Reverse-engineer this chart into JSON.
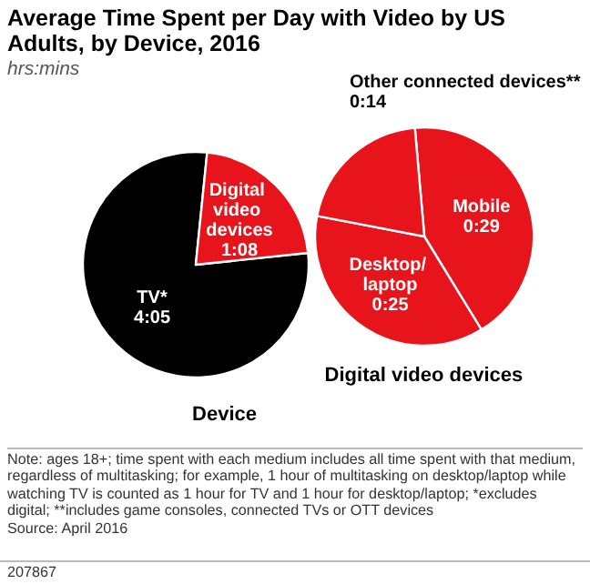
{
  "chart_data": [
    {
      "type": "pie",
      "title": "Average Time Spent per Day with Video by US Adults, by Device, 2016",
      "subtitle": "hrs:mins",
      "xlabel": "Device",
      "categories": [
        "TV*",
        "Digital video devices"
      ],
      "values": [
        245,
        68
      ],
      "value_labels": [
        "4:05",
        "1:08"
      ],
      "colors": [
        "#000000",
        "#e8141c"
      ],
      "annotations": [
        "Note: ages 18+; time spent with each medium includes all time spent with that medium, regardless of multitasking; for example, 1 hour of multitasking on desktop/laptop while watching TV is counted as 1 hour for TV and 1 hour for desktop/laptop; *excludes digital; **includes game consoles, connected TVs or OTT devices",
        "Source: April 2016",
        "207867"
      ]
    },
    {
      "type": "pie",
      "xlabel": "Digital video devices",
      "categories": [
        "Mobile",
        "Desktop/ laptop",
        "Other connected devices**"
      ],
      "values": [
        29,
        25,
        14
      ],
      "value_labels": [
        "0:29",
        "0:25",
        "0:14"
      ],
      "colors": [
        "#e8141c",
        "#e8141c",
        "#e8141c"
      ]
    }
  ]
}
